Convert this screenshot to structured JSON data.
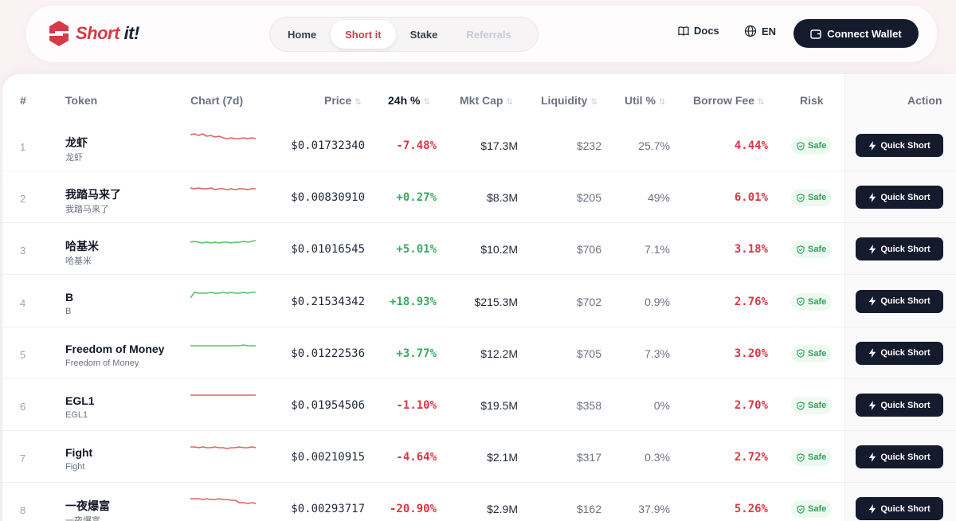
{
  "brand": {
    "short": "Short",
    "it": " it!"
  },
  "nav": {
    "tabs": [
      {
        "label": "Home",
        "state": "normal"
      },
      {
        "label": "Short it",
        "state": "active"
      },
      {
        "label": "Stake",
        "state": "normal"
      },
      {
        "label": "Referrals",
        "state": "disabled"
      }
    ]
  },
  "header": {
    "docs_label": "Docs",
    "lang_label": "EN",
    "wallet_label": "Connect Wallet"
  },
  "table": {
    "columns": {
      "rank": "#",
      "token": "Token",
      "chart": "Chart (7d)",
      "price": "Price",
      "change": "24h %",
      "mcap": "Mkt Cap",
      "liquidity": "Liquidity",
      "util": "Util %",
      "fee": "Borrow Fee",
      "risk": "Risk",
      "action": "Action"
    },
    "rows": [
      {
        "rank": "1",
        "name": "龙虾",
        "symbol": "龙虾",
        "price": "$0.01732340",
        "change": "-7.48%",
        "trend": "down",
        "mcap": "$17.3M",
        "liquidity": "$232",
        "util": "25.7%",
        "fee": "4.44%",
        "risk": "Safe",
        "action": "Quick Short",
        "spark": [
          3,
          2,
          4,
          2,
          5,
          4,
          6,
          5,
          7,
          8,
          7,
          8,
          8,
          7,
          8,
          7,
          8
        ],
        "spark_color": "#e0635f"
      },
      {
        "rank": "2",
        "name": "我踏马来了",
        "symbol": "我踏马来了",
        "price": "$0.00830910",
        "change": "+0.27%",
        "trend": "up",
        "mcap": "$8.3M",
        "liquidity": "$205",
        "util": "49%",
        "fee": "6.01%",
        "risk": "Safe",
        "action": "Quick Short",
        "spark": [
          5,
          6,
          5,
          6,
          6,
          5,
          7,
          6,
          6,
          7,
          6,
          7,
          6,
          6,
          7,
          6,
          6
        ],
        "spark_color": "#e0635f"
      },
      {
        "rank": "3",
        "name": "哈基米",
        "symbol": "哈基米",
        "price": "$0.01016545",
        "change": "+5.01%",
        "trend": "up",
        "mcap": "$10.2M",
        "liquidity": "$706",
        "util": "7.1%",
        "fee": "3.18%",
        "risk": "Safe",
        "action": "Quick Short",
        "spark": [
          8,
          7,
          8,
          9,
          8,
          9,
          8,
          9,
          8,
          8,
          9,
          8,
          8,
          7,
          8,
          7,
          6
        ],
        "spark_color": "#5cc06a"
      },
      {
        "rank": "4",
        "name": "B",
        "symbol": "B",
        "price": "$0.21534342",
        "change": "+18.93%",
        "trend": "up",
        "mcap": "$215.3M",
        "liquidity": "$702",
        "util": "0.9%",
        "fee": "2.76%",
        "risk": "Safe",
        "action": "Quick Short",
        "spark": [
          12,
          5,
          6,
          6,
          6,
          5,
          6,
          6,
          5,
          6,
          5,
          6,
          6,
          5,
          6,
          5,
          5
        ],
        "spark_color": "#5cc06a"
      },
      {
        "rank": "5",
        "name": "Freedom of Money",
        "symbol": "Freedom of Money",
        "price": "$0.01222536",
        "change": "+3.77%",
        "trend": "up",
        "mcap": "$12.2M",
        "liquidity": "$705",
        "util": "7.3%",
        "fee": "3.20%",
        "risk": "Safe",
        "action": "Quick Short",
        "spark": [
          7,
          7,
          7,
          7,
          7,
          7,
          7,
          7,
          7,
          7,
          7,
          7,
          7,
          6,
          7,
          7,
          7
        ],
        "spark_color": "#5cc06a"
      },
      {
        "rank": "6",
        "name": "EGL1",
        "symbol": "EGL1",
        "price": "$0.01954506",
        "change": "-1.10%",
        "trend": "down",
        "mcap": "$19.5M",
        "liquidity": "$358",
        "util": "0%",
        "fee": "2.70%",
        "risk": "Safe",
        "action": "Quick Short",
        "spark": [
          4,
          4,
          4,
          4,
          4,
          4,
          4,
          4,
          4,
          4,
          4,
          4,
          4,
          4,
          4,
          4,
          4
        ],
        "spark_color": "#e0635f"
      },
      {
        "rank": "7",
        "name": "Fight",
        "symbol": "Fight",
        "price": "$0.00210915",
        "change": "-4.64%",
        "trend": "down",
        "mcap": "$2.1M",
        "liquidity": "$317",
        "util": "0.3%",
        "fee": "2.72%",
        "risk": "Safe",
        "action": "Quick Short",
        "spark": [
          4,
          4,
          5,
          4,
          5,
          5,
          4,
          5,
          5,
          6,
          5,
          5,
          4,
          5,
          5,
          4,
          5
        ],
        "spark_color": "#e0635f"
      },
      {
        "rank": "8",
        "name": "一夜爆富",
        "symbol": "一夜爆富",
        "price": "$0.00293717",
        "change": "-20.90%",
        "trend": "down",
        "mcap": "$2.9M",
        "liquidity": "$162",
        "util": "37.9%",
        "fee": "5.26%",
        "risk": "Safe",
        "action": "Quick Short",
        "spark": [
          4,
          4,
          4,
          5,
          4,
          5,
          5,
          4,
          5,
          5,
          6,
          6,
          9,
          9,
          10,
          9,
          10
        ],
        "spark_color": "#e0635f"
      }
    ]
  }
}
